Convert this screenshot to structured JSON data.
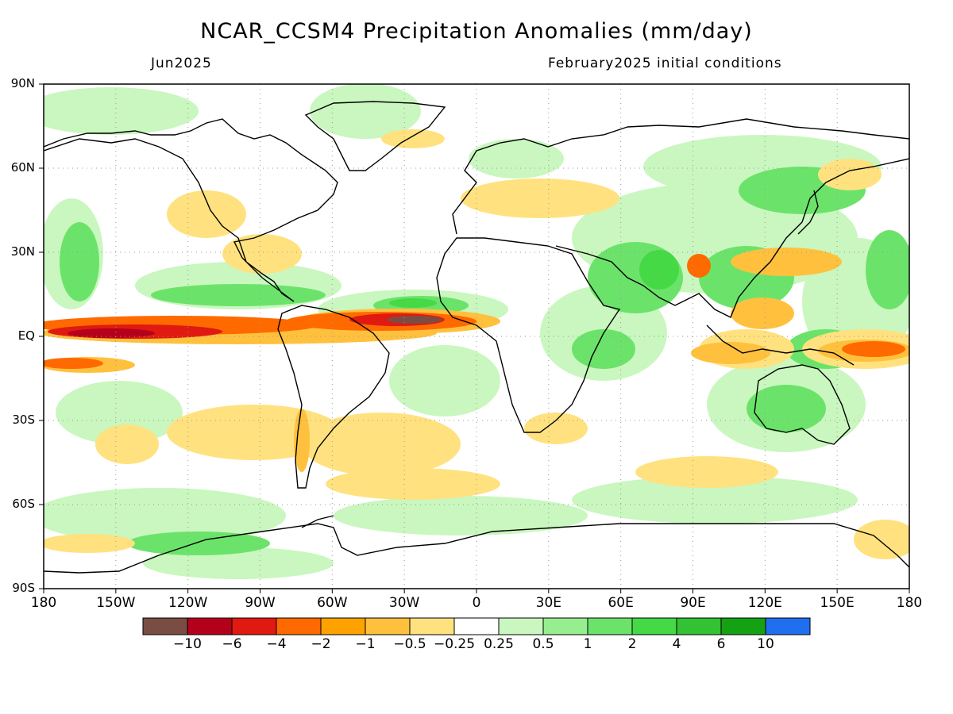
{
  "title": "NCAR_CCSM4 Precipitation Anomalies (mm/day)",
  "subtitle_left": "Jun2025",
  "subtitle_right": "February2025 initial conditions",
  "lat_labels": [
    "90N",
    "60N",
    "30N",
    "EQ",
    "30S",
    "60S",
    "90S"
  ],
  "lat_values": [
    90,
    60,
    30,
    0,
    -30,
    -60,
    -90
  ],
  "lon_labels": [
    "180",
    "150W",
    "120W",
    "90W",
    "60W",
    "30W",
    "0",
    "30E",
    "60E",
    "90E",
    "120E",
    "150E",
    "180"
  ],
  "lon_values": [
    -180,
    -150,
    -120,
    -90,
    -60,
    -30,
    0,
    30,
    60,
    90,
    120,
    150,
    180
  ],
  "colorbar": {
    "colors": [
      "#7a4d44",
      "#b5001b",
      "#e01a10",
      "#ff6a00",
      "#ffa200",
      "#ffc13d",
      "#ffe27f",
      "#ffffff",
      "#c9f7bf",
      "#97ee8e",
      "#6be36a",
      "#45d946",
      "#33c233",
      "#14a114",
      "#1f6fef"
    ],
    "labels": [
      "−10",
      "−6",
      "−4",
      "−2",
      "−1",
      "−0.5",
      "−0.25",
      "0.25",
      "0.5",
      "1",
      "2",
      "4",
      "6",
      "10"
    ]
  },
  "colors": {
    "land_outline": "#000000",
    "grid": "#999999"
  }
}
